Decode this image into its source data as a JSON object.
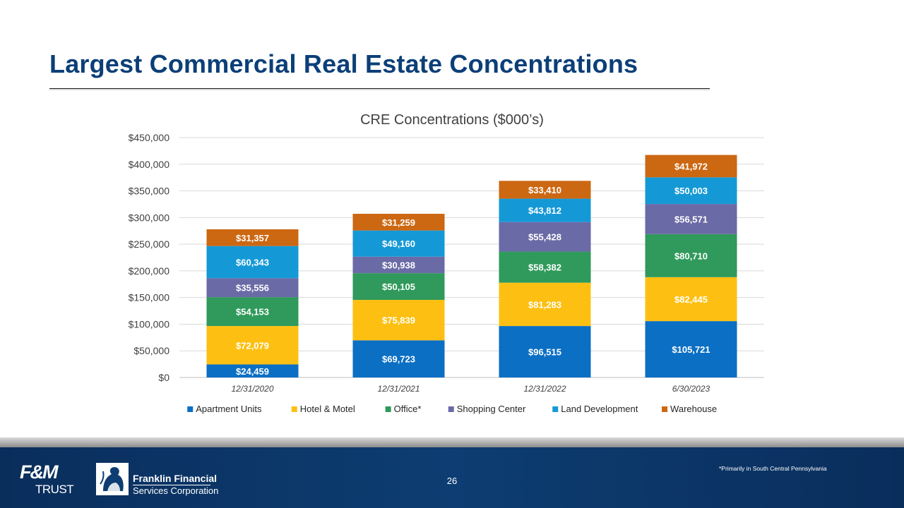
{
  "slide": {
    "title": "Largest Commercial Real Estate Concentrations",
    "page_number": "26",
    "footnote": "*Primarily in South Central Pennsylvania"
  },
  "branding": {
    "fm_top": "F&M",
    "fm_bottom": "TRUST",
    "ffs_line1": "Franklin Financial",
    "ffs_line2": "Services Corporation"
  },
  "chart_data": {
    "type": "bar",
    "stacked": true,
    "title": "CRE Concentrations ($000’s)",
    "categories": [
      "12/31/2020",
      "12/31/2021",
      "12/31/2022",
      "6/30/2023"
    ],
    "ylim": [
      0,
      450000
    ],
    "yticks": [
      0,
      50000,
      100000,
      150000,
      200000,
      250000,
      300000,
      350000,
      400000,
      450000
    ],
    "ytick_labels": [
      "$0",
      "$50,000",
      "$100,000",
      "$150,000",
      "$200,000",
      "$250,000",
      "$300,000",
      "$350,000",
      "$400,000",
      "$450,000"
    ],
    "grid": true,
    "legend_position": "bottom",
    "series": [
      {
        "name": "Apartment Units",
        "color": "#0b6fc4",
        "values": [
          24459,
          69723,
          96515,
          105721
        ],
        "labels": [
          "$24,459",
          "$69,723",
          "$96,515",
          "$105,721"
        ]
      },
      {
        "name": "Hotel & Motel",
        "color": "#fdc012",
        "values": [
          72079,
          75839,
          81283,
          82445
        ],
        "labels": [
          "$72,079",
          "$75,839",
          "$81,283",
          "$82,445"
        ]
      },
      {
        "name": "Office*",
        "color": "#2f9a5b",
        "values": [
          54153,
          50105,
          58382,
          80710
        ],
        "labels": [
          "$54,153",
          "$50,105",
          "$58,382",
          "$80,710"
        ]
      },
      {
        "name": "Shopping Center",
        "color": "#6a6aa6",
        "values": [
          35556,
          30938,
          55428,
          56571
        ],
        "labels": [
          "$35,556",
          "$30,938",
          "$55,428",
          "$56,571"
        ]
      },
      {
        "name": "Land Development",
        "color": "#1599d6",
        "values": [
          60343,
          49160,
          43812,
          50003
        ],
        "labels": [
          "$60,343",
          "$49,160",
          "$43,812",
          "$50,003"
        ]
      },
      {
        "name": "Warehouse",
        "color": "#cc6712",
        "values": [
          31357,
          31259,
          33410,
          41972
        ],
        "labels": [
          "$31,357",
          "$31,259",
          "$33,410",
          "$41,972"
        ]
      }
    ]
  }
}
